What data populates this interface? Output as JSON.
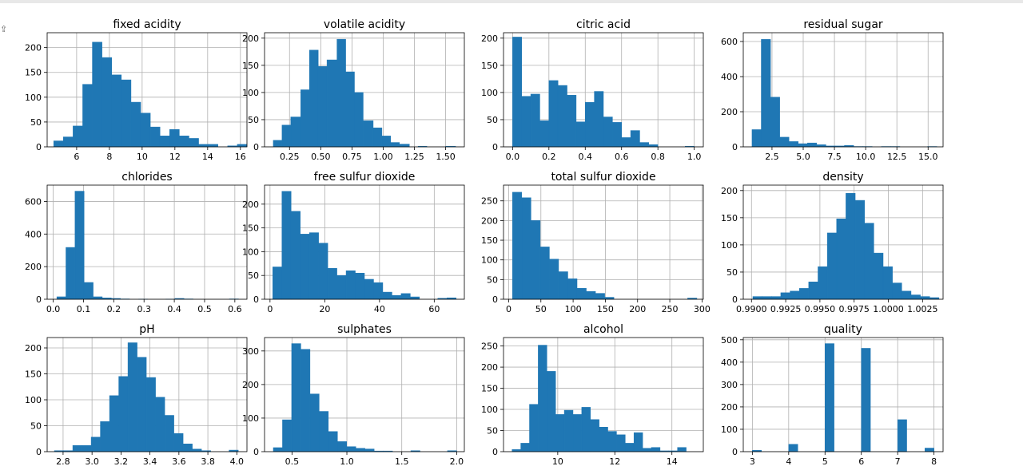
{
  "cell_icon": "output-icon",
  "chart_data": [
    {
      "type": "bar",
      "title": "fixed acidity",
      "xlim": [
        4.2,
        16.4
      ],
      "ylim": [
        0,
        230
      ],
      "xticks": [
        6,
        8,
        10,
        12,
        14,
        16
      ],
      "xtick_labels": [
        "6",
        "8",
        "10",
        "12",
        "14",
        "16"
      ],
      "yticks": [
        0,
        50,
        100,
        150,
        200
      ],
      "bin_edges": [
        4.6,
        5.19,
        5.78,
        6.37,
        6.96,
        7.55,
        8.14,
        8.73,
        9.32,
        9.91,
        10.5,
        11.09,
        11.68,
        12.27,
        12.86,
        13.45,
        14.04,
        14.63,
        15.22,
        15.81,
        16.4
      ],
      "values": [
        12,
        20,
        42,
        126,
        211,
        180,
        145,
        135,
        90,
        68,
        40,
        22,
        35,
        22,
        17,
        5,
        5,
        0,
        2,
        5
      ]
    },
    {
      "type": "bar",
      "title": "volatile acidity",
      "xlim": [
        0.05,
        1.65
      ],
      "ylim": [
        0,
        210
      ],
      "xticks": [
        0.25,
        0.5,
        0.75,
        1.0,
        1.25,
        1.5
      ],
      "xtick_labels": [
        "0.25",
        "0.50",
        "0.75",
        "1.00",
        "1.25",
        "1.50"
      ],
      "yticks": [
        0,
        50,
        100,
        150,
        200
      ],
      "bin_edges": [
        0.12,
        0.19,
        0.26,
        0.34,
        0.41,
        0.48,
        0.55,
        0.63,
        0.7,
        0.77,
        0.84,
        0.92,
        0.99,
        1.06,
        1.13,
        1.21,
        1.28,
        1.35,
        1.42,
        1.5,
        1.58
      ],
      "values": [
        12,
        40,
        55,
        105,
        178,
        148,
        160,
        198,
        138,
        100,
        48,
        35,
        20,
        8,
        5,
        0,
        1,
        0,
        0,
        1
      ]
    },
    {
      "type": "bar",
      "title": "citric acid",
      "xlim": [
        -0.05,
        1.05
      ],
      "ylim": [
        0,
        210
      ],
      "xticks": [
        0.0,
        0.2,
        0.4,
        0.6,
        0.8,
        1.0
      ],
      "xtick_labels": [
        "0.0",
        "0.2",
        "0.4",
        "0.6",
        "0.8",
        "1.0"
      ],
      "yticks": [
        0,
        50,
        100,
        150,
        200
      ],
      "bin_edges": [
        0,
        0.05,
        0.1,
        0.15,
        0.2,
        0.25,
        0.3,
        0.35,
        0.4,
        0.45,
        0.5,
        0.55,
        0.6,
        0.65,
        0.7,
        0.75,
        0.8,
        0.85,
        0.9,
        0.95,
        1.0
      ],
      "values": [
        202,
        93,
        97,
        48,
        122,
        113,
        95,
        46,
        82,
        102,
        55,
        45,
        17,
        30,
        8,
        4,
        0,
        0,
        0,
        1
      ]
    },
    {
      "type": "bar",
      "title": "residual sugar",
      "xlim": [
        0.2,
        16.2
      ],
      "ylim": [
        0,
        650
      ],
      "xticks": [
        2.5,
        5.0,
        7.5,
        10.0,
        12.5,
        15.0
      ],
      "xtick_labels": [
        "2.5",
        "5.0",
        "7.5",
        "10.0",
        "12.5",
        "15.0"
      ],
      "yticks": [
        0,
        200,
        400,
        600
      ],
      "bin_edges": [
        0.9,
        1.64,
        2.38,
        3.12,
        3.86,
        4.6,
        5.34,
        6.08,
        6.82,
        7.56,
        8.3,
        9.04,
        9.78,
        10.52,
        11.26,
        12.0,
        12.74,
        13.48,
        14.22,
        14.96,
        15.7
      ],
      "values": [
        98,
        612,
        283,
        55,
        30,
        18,
        22,
        12,
        5,
        5,
        8,
        2,
        2,
        0,
        2,
        2,
        0,
        0,
        0,
        2
      ]
    },
    {
      "type": "bar",
      "title": "chlorides",
      "xlim": [
        -0.02,
        0.64
      ],
      "ylim": [
        0,
        700
      ],
      "xticks": [
        0.0,
        0.1,
        0.2,
        0.3,
        0.4,
        0.5,
        0.6
      ],
      "xtick_labels": [
        "0.0",
        "0.1",
        "0.2",
        "0.3",
        "0.4",
        "0.5",
        "0.6"
      ],
      "yticks": [
        0,
        200,
        400,
        600
      ],
      "bin_edges": [
        0.012,
        0.042,
        0.072,
        0.102,
        0.132,
        0.162,
        0.192,
        0.222,
        0.252,
        0.282,
        0.312,
        0.342,
        0.372,
        0.402,
        0.432,
        0.462,
        0.492,
        0.522,
        0.552,
        0.582,
        0.612
      ],
      "values": [
        15,
        318,
        663,
        103,
        15,
        8,
        5,
        2,
        0,
        1,
        0,
        0,
        1,
        5,
        2,
        0,
        0,
        0,
        0,
        2
      ]
    },
    {
      "type": "bar",
      "title": "free sulfur dioxide",
      "xlim": [
        -2,
        71
      ],
      "ylim": [
        0,
        240
      ],
      "xticks": [
        0,
        20,
        40,
        60
      ],
      "xtick_labels": [
        "0",
        "20",
        "40",
        "60"
      ],
      "yticks": [
        0,
        50,
        100,
        150,
        200
      ],
      "bin_edges": [
        1,
        4.35,
        7.7,
        11.05,
        14.4,
        17.75,
        21.1,
        24.45,
        27.8,
        31.15,
        34.5,
        37.85,
        41.2,
        44.55,
        47.9,
        51.25,
        54.6,
        57.95,
        61.3,
        64.65,
        68
      ],
      "values": [
        68,
        227,
        185,
        137,
        140,
        118,
        65,
        50,
        60,
        55,
        42,
        35,
        15,
        8,
        12,
        5,
        0,
        0,
        2,
        3
      ]
    },
    {
      "type": "bar",
      "title": "total sulfur dioxide",
      "xlim": [
        -8,
        302
      ],
      "ylim": [
        0,
        290
      ],
      "xticks": [
        0,
        50,
        100,
        150,
        200,
        250,
        300
      ],
      "xtick_labels": [
        "0",
        "50",
        "100",
        "150",
        "200",
        "250",
        "300"
      ],
      "yticks": [
        0,
        50,
        100,
        150,
        200,
        250
      ],
      "bin_edges": [
        6,
        20.3,
        34.6,
        48.9,
        63.2,
        77.5,
        91.8,
        106.1,
        120.4,
        134.7,
        149,
        163.3,
        177.6,
        191.9,
        206.2,
        220.5,
        234.8,
        249.1,
        263.4,
        277.7,
        292
      ],
      "values": [
        272,
        258,
        200,
        133,
        102,
        70,
        52,
        28,
        20,
        15,
        5,
        0,
        0,
        0,
        0,
        0,
        0,
        0,
        0,
        3
      ]
    },
    {
      "type": "bar",
      "title": "density",
      "xlim": [
        0.9894,
        1.004
      ],
      "ylim": [
        0,
        210
      ],
      "xticks": [
        0.99,
        0.9925,
        0.995,
        0.9975,
        1.0,
        1.0025
      ],
      "xtick_labels": [
        "0.9900",
        "0.9925",
        "0.9950",
        "0.9975",
        "1.0000",
        "1.0025"
      ],
      "yticks": [
        0,
        50,
        100,
        150,
        200
      ],
      "bin_edges": [
        0.9901,
        0.99078,
        0.99146,
        0.99214,
        0.99282,
        0.9935,
        0.99418,
        0.99486,
        0.99554,
        0.99622,
        0.9969,
        0.99758,
        0.99826,
        0.99894,
        0.99962,
        1.0003,
        1.00098,
        1.00166,
        1.00234,
        1.00302,
        1.0037
      ],
      "values": [
        5,
        5,
        5,
        12,
        15,
        20,
        32,
        60,
        122,
        148,
        195,
        182,
        140,
        85,
        60,
        30,
        15,
        8,
        5,
        3
      ]
    },
    {
      "type": "bar",
      "title": "pH",
      "xlim": [
        2.69,
        4.07
      ],
      "ylim": [
        0,
        220
      ],
      "xticks": [
        2.8,
        3.0,
        3.2,
        3.4,
        3.6,
        3.8,
        4.0
      ],
      "xtick_labels": [
        "2.8",
        "3.0",
        "3.2",
        "3.4",
        "3.6",
        "3.8",
        "4.0"
      ],
      "yticks": [
        0,
        50,
        100,
        150,
        200
      ],
      "bin_edges": [
        2.74,
        2.8035,
        2.867,
        2.9305,
        2.994,
        3.0575,
        3.121,
        3.1845,
        3.248,
        3.3115,
        3.375,
        3.4385,
        3.502,
        3.5655,
        3.629,
        3.6925,
        3.756,
        3.8195,
        3.883,
        3.9465,
        4.01
      ],
      "values": [
        2,
        2,
        12,
        12,
        28,
        58,
        108,
        145,
        210,
        182,
        143,
        105,
        70,
        35,
        15,
        5,
        2,
        0,
        0,
        3
      ]
    },
    {
      "type": "bar",
      "title": "sulphates",
      "xlim": [
        0.25,
        2.07
      ],
      "ylim": [
        0,
        340
      ],
      "xticks": [
        0.5,
        1.0,
        1.5,
        2.0
      ],
      "xtick_labels": [
        "0.5",
        "1.0",
        "1.5",
        "2.0"
      ],
      "yticks": [
        0,
        100,
        200,
        300
      ],
      "bin_edges": [
        0.33,
        0.4135,
        0.497,
        0.5805,
        0.664,
        0.7475,
        0.831,
        0.9145,
        0.998,
        1.0815,
        1.165,
        1.2485,
        1.332,
        1.4155,
        1.499,
        1.5825,
        1.666,
        1.7495,
        1.833,
        1.9165,
        2.0
      ],
      "values": [
        12,
        95,
        322,
        305,
        172,
        120,
        60,
        30,
        15,
        10,
        8,
        2,
        2,
        0,
        0,
        3,
        0,
        0,
        0,
        3
      ]
    },
    {
      "type": "bar",
      "title": "alcohol",
      "xlim": [
        8.1,
        15.1
      ],
      "ylim": [
        0,
        270
      ],
      "xticks": [
        10,
        12,
        14
      ],
      "xtick_labels": [
        "10",
        "12",
        "14"
      ],
      "yticks": [
        0,
        50,
        100,
        150,
        200,
        250
      ],
      "bin_edges": [
        8.4,
        8.705,
        9.01,
        9.315,
        9.62,
        9.925,
        10.23,
        10.535,
        10.84,
        11.145,
        11.45,
        11.755,
        12.06,
        12.365,
        12.67,
        12.975,
        13.28,
        13.585,
        13.89,
        14.195,
        14.5
      ],
      "values": [
        5,
        20,
        112,
        252,
        190,
        88,
        98,
        88,
        105,
        76,
        58,
        48,
        40,
        20,
        45,
        8,
        10,
        2,
        2,
        10
      ]
    },
    {
      "type": "bar",
      "title": "quality",
      "xlim": [
        2.75,
        8.25
      ],
      "ylim": [
        0,
        510
      ],
      "xticks": [
        3,
        4,
        5,
        6,
        7,
        8
      ],
      "xtick_labels": [
        "3",
        "4",
        "5",
        "6",
        "7",
        "8"
      ],
      "yticks": [
        0,
        100,
        200,
        300,
        400,
        500
      ],
      "bin_edges": [
        3,
        3.25,
        3.5,
        3.75,
        4,
        4.25,
        4.5,
        4.75,
        5,
        5.25,
        5.5,
        5.75,
        6,
        6.25,
        6.5,
        6.75,
        7,
        7.25,
        7.5,
        7.75,
        8
      ],
      "values": [
        6,
        0,
        0,
        0,
        33,
        0,
        0,
        0,
        483,
        0,
        0,
        0,
        462,
        0,
        0,
        0,
        143,
        0,
        0,
        16
      ]
    }
  ]
}
